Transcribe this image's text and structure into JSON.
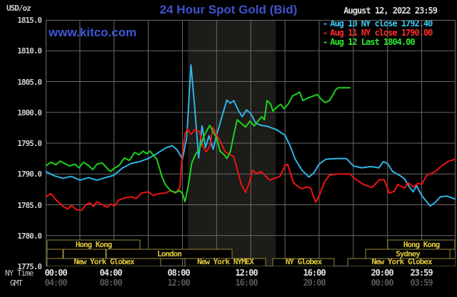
{
  "header": {
    "unit": "USD/oz",
    "title": "24 Hour Spot Gold (Bid)",
    "site": "www.kitco.com",
    "datetime": "August 12, 2022 23:59"
  },
  "legend": {
    "items": [
      {
        "label": "Aug 10 NY close 1792.40",
        "color": "#3cc8f5"
      },
      {
        "label": "Aug 11 NY close 1790.00",
        "color": "#ff2a2a"
      },
      {
        "label": "Aug 12 Last 1804.00",
        "color": "#2ee62e"
      }
    ]
  },
  "axes": {
    "ny_time_label": "NY Time",
    "gmt_label": "GMT",
    "y_labels": [
      "1815.0",
      "1810.0",
      "1805.0",
      "1800.0",
      "1795.0",
      "1790.0",
      "1785.0",
      "1780.0",
      "1775.0"
    ],
    "x_ny": [
      "00:00",
      "04:00",
      "08:00",
      "12:00",
      "16:00",
      "20:00",
      "23:59"
    ],
    "x_gmt": [
      "04:00",
      "08:00",
      "12:00",
      "16:00",
      "20:00",
      "00:00",
      "03:59"
    ]
  },
  "sessions": {
    "border_color": "#97893b",
    "text_color": "#dcc63c",
    "rows": [
      {
        "boxes": [
          {
            "x1": 66,
            "x2": 196,
            "label": "Hong Kong"
          },
          {
            "x1": 543,
            "x2": 637,
            "label": "Hong Kong"
          }
        ]
      },
      {
        "boxes": [
          {
            "x1": 66,
            "x2": 88,
            "label": ""
          },
          {
            "x1": 89,
            "x2": 148,
            "label": ""
          },
          {
            "x1": 149,
            "x2": 325,
            "label": "London"
          },
          {
            "x1": 512,
            "x2": 630,
            "label": "Sydney"
          }
        ]
      },
      {
        "boxes": [
          {
            "x1": 66,
            "x2": 225,
            "label": "New York Globex"
          },
          {
            "x1": 259,
            "x2": 372,
            "label": "New York NYMEX"
          },
          {
            "x1": 382,
            "x2": 468,
            "label": "NY Globex"
          },
          {
            "x1": 487,
            "x2": 638,
            "label": "New York Globex"
          }
        ]
      }
    ]
  },
  "chart_data": {
    "type": "line",
    "title": "24 Hour Spot Gold (Bid)",
    "xlabel": "NY Time (hours 00:00 - 23:59)",
    "ylabel": "USD/oz",
    "ylim": [
      1775,
      1815
    ],
    "xlim_hours": [
      0,
      23.9833
    ],
    "grid": {
      "y_step": 5,
      "x_step_hours": 2,
      "color": "#6a6a6a"
    },
    "nymex_band_hours": [
      8.33,
      13.45
    ],
    "nymex_band_color": "#1c1c18",
    "background": "#000000",
    "series": [
      {
        "name": "Aug 10 (close 1792.40)",
        "color": "#2fb4e6",
        "points": [
          [
            0,
            1790.4
          ],
          [
            0.5,
            1789.7
          ],
          [
            1,
            1789.3
          ],
          [
            1.5,
            1789.6
          ],
          [
            2,
            1789.0
          ],
          [
            2.5,
            1789.4
          ],
          [
            3,
            1789.0
          ],
          [
            3.5,
            1789.4
          ],
          [
            4,
            1789.8
          ],
          [
            4.5,
            1791.0
          ],
          [
            5,
            1791.7
          ],
          [
            5.5,
            1792.0
          ],
          [
            6,
            1792.5
          ],
          [
            6.5,
            1793.3
          ],
          [
            7,
            1794.2
          ],
          [
            7.4,
            1794.6
          ],
          [
            7.7,
            1793.9
          ],
          [
            8.0,
            1792.4
          ],
          [
            8.25,
            1795.8
          ],
          [
            8.5,
            1807.7
          ],
          [
            8.7,
            1801.5
          ],
          [
            8.95,
            1792.6
          ],
          [
            9.15,
            1797.8
          ],
          [
            9.35,
            1794.3
          ],
          [
            9.55,
            1796.2
          ],
          [
            9.8,
            1794.0
          ],
          [
            10.0,
            1796.3
          ],
          [
            10.3,
            1799.2
          ],
          [
            10.6,
            1802.0
          ],
          [
            10.8,
            1801.5
          ],
          [
            11.0,
            1801.9
          ],
          [
            11.3,
            1800.2
          ],
          [
            11.5,
            1799.3
          ],
          [
            11.75,
            1800.4
          ],
          [
            12.0,
            1799.8
          ],
          [
            12.3,
            1798.2
          ],
          [
            12.6,
            1797.9
          ],
          [
            13.0,
            1797.7
          ],
          [
            13.5,
            1797.2
          ],
          [
            14.0,
            1796.3
          ],
          [
            14.3,
            1794.6
          ],
          [
            14.6,
            1792.4
          ],
          [
            15.0,
            1790.6
          ],
          [
            15.4,
            1789.5
          ],
          [
            15.7,
            1790.2
          ],
          [
            16.0,
            1791.6
          ],
          [
            16.4,
            1792.4
          ],
          [
            17.0,
            1792.5
          ],
          [
            17.6,
            1792.5
          ],
          [
            18.0,
            1791.3
          ],
          [
            18.5,
            1791.0
          ],
          [
            19.0,
            1791.2
          ],
          [
            19.5,
            1791.0
          ],
          [
            19.75,
            1792.0
          ],
          [
            20.0,
            1791.7
          ],
          [
            20.3,
            1790.4
          ],
          [
            20.7,
            1789.8
          ],
          [
            21.0,
            1789.2
          ],
          [
            21.3,
            1787.8
          ],
          [
            21.5,
            1787.1
          ],
          [
            21.7,
            1788.1
          ],
          [
            22.0,
            1786.5
          ],
          [
            22.5,
            1784.8
          ],
          [
            22.8,
            1785.4
          ],
          [
            23.1,
            1786.3
          ],
          [
            23.5,
            1786.4
          ],
          [
            23.98,
            1785.9
          ]
        ]
      },
      {
        "name": "Aug 11 (close 1790.00)",
        "color": "#ee1212",
        "points": [
          [
            0,
            1786.3
          ],
          [
            0.3,
            1786.8
          ],
          [
            0.6,
            1785.8
          ],
          [
            1.0,
            1784.8
          ],
          [
            1.3,
            1784.3
          ],
          [
            1.5,
            1784.9
          ],
          [
            1.8,
            1784.2
          ],
          [
            2.1,
            1784.1
          ],
          [
            2.4,
            1785.1
          ],
          [
            2.6,
            1785.3
          ],
          [
            2.8,
            1784.7
          ],
          [
            3.0,
            1785.5
          ],
          [
            3.3,
            1785.0
          ],
          [
            3.6,
            1784.6
          ],
          [
            3.8,
            1785.1
          ],
          [
            4.0,
            1784.8
          ],
          [
            4.3,
            1785.8
          ],
          [
            4.6,
            1786.1
          ],
          [
            5.0,
            1786.3
          ],
          [
            5.3,
            1786.0
          ],
          [
            5.6,
            1786.9
          ],
          [
            6.0,
            1787.1
          ],
          [
            6.3,
            1786.5
          ],
          [
            6.6,
            1786.8
          ],
          [
            7.0,
            1786.9
          ],
          [
            7.3,
            1787.3
          ],
          [
            7.6,
            1786.9
          ],
          [
            7.85,
            1787.8
          ],
          [
            8.0,
            1793.5
          ],
          [
            8.15,
            1796.5
          ],
          [
            8.3,
            1797.3
          ],
          [
            8.5,
            1796.4
          ],
          [
            8.7,
            1797.2
          ],
          [
            9.0,
            1796.9
          ],
          [
            9.2,
            1794.4
          ],
          [
            9.4,
            1793.6
          ],
          [
            9.6,
            1794.5
          ],
          [
            9.8,
            1797.6
          ],
          [
            10.0,
            1796.3
          ],
          [
            10.2,
            1795.4
          ],
          [
            10.5,
            1793.6
          ],
          [
            10.8,
            1793.1
          ],
          [
            11.0,
            1792.8
          ],
          [
            11.2,
            1790.8
          ],
          [
            11.45,
            1788.3
          ],
          [
            11.7,
            1787.0
          ],
          [
            11.9,
            1788.5
          ],
          [
            12.1,
            1790.6
          ],
          [
            12.35,
            1790.1
          ],
          [
            12.6,
            1790.4
          ],
          [
            12.85,
            1789.7
          ],
          [
            13.1,
            1789.0
          ],
          [
            13.4,
            1789.3
          ],
          [
            13.7,
            1789.6
          ],
          [
            14.0,
            1791.3
          ],
          [
            14.15,
            1791.6
          ],
          [
            14.5,
            1788.6
          ],
          [
            14.8,
            1787.9
          ],
          [
            15.0,
            1787.6
          ],
          [
            15.3,
            1787.9
          ],
          [
            15.5,
            1787.7
          ],
          [
            15.8,
            1785.4
          ],
          [
            16.0,
            1786.4
          ],
          [
            16.3,
            1788.6
          ],
          [
            16.6,
            1789.8
          ],
          [
            17.0,
            1790.0
          ],
          [
            17.8,
            1790.0
          ],
          [
            18.1,
            1789.2
          ],
          [
            18.6,
            1788.3
          ],
          [
            19.1,
            1787.8
          ],
          [
            19.5,
            1789.0
          ],
          [
            19.8,
            1789.1
          ],
          [
            20.1,
            1786.9
          ],
          [
            20.4,
            1787.2
          ],
          [
            20.6,
            1788.3
          ],
          [
            21.0,
            1787.7
          ],
          [
            21.2,
            1788.6
          ],
          [
            21.5,
            1787.9
          ],
          [
            21.8,
            1788.5
          ],
          [
            22.0,
            1788.3
          ],
          [
            22.3,
            1789.8
          ],
          [
            22.8,
            1790.4
          ],
          [
            23.2,
            1791.4
          ],
          [
            23.6,
            1792.1
          ],
          [
            23.98,
            1792.4
          ]
        ]
      },
      {
        "name": "Aug 12 (last 1804.00)",
        "color": "#1ed11e",
        "points": [
          [
            0,
            1791.3
          ],
          [
            0.3,
            1791.9
          ],
          [
            0.6,
            1791.5
          ],
          [
            0.85,
            1792.1
          ],
          [
            1.1,
            1791.7
          ],
          [
            1.4,
            1791.3
          ],
          [
            1.7,
            1791.6
          ],
          [
            1.95,
            1791.0
          ],
          [
            2.2,
            1791.9
          ],
          [
            2.5,
            1791.4
          ],
          [
            2.75,
            1790.7
          ],
          [
            3.0,
            1791.6
          ],
          [
            3.3,
            1791.8
          ],
          [
            3.6,
            1790.9
          ],
          [
            3.8,
            1790.4
          ],
          [
            4.0,
            1790.9
          ],
          [
            4.3,
            1791.4
          ],
          [
            4.6,
            1792.6
          ],
          [
            4.9,
            1792.2
          ],
          [
            5.2,
            1793.5
          ],
          [
            5.45,
            1793.1
          ],
          [
            5.7,
            1793.7
          ],
          [
            5.9,
            1793.3
          ],
          [
            6.1,
            1793.7
          ],
          [
            6.5,
            1792.4
          ],
          [
            6.8,
            1789.6
          ],
          [
            7.0,
            1788.3
          ],
          [
            7.3,
            1787.3
          ],
          [
            7.6,
            1787.0
          ],
          [
            7.85,
            1787.3
          ],
          [
            8.0,
            1786.8
          ],
          [
            8.15,
            1785.5
          ],
          [
            8.35,
            1788.2
          ],
          [
            8.55,
            1791.8
          ],
          [
            8.75,
            1793.1
          ],
          [
            9.0,
            1794.1
          ],
          [
            9.3,
            1796.4
          ],
          [
            9.6,
            1797.9
          ],
          [
            9.8,
            1796.8
          ],
          [
            10.0,
            1795.9
          ],
          [
            10.2,
            1793.7
          ],
          [
            10.45,
            1793.1
          ],
          [
            10.6,
            1792.5
          ],
          [
            10.8,
            1793.6
          ],
          [
            11.0,
            1796.3
          ],
          [
            11.2,
            1798.8
          ],
          [
            11.5,
            1798.1
          ],
          [
            11.7,
            1797.6
          ],
          [
            11.95,
            1798.6
          ],
          [
            12.2,
            1797.8
          ],
          [
            12.45,
            1798.7
          ],
          [
            12.65,
            1799.3
          ],
          [
            12.8,
            1798.8
          ],
          [
            12.95,
            1801.9
          ],
          [
            13.15,
            1801.4
          ],
          [
            13.3,
            1800.2
          ],
          [
            13.55,
            1800.9
          ],
          [
            13.75,
            1801.3
          ],
          [
            13.95,
            1800.6
          ],
          [
            14.2,
            1801.4
          ],
          [
            14.45,
            1802.7
          ],
          [
            14.7,
            1803.0
          ],
          [
            14.85,
            1803.3
          ],
          [
            15.05,
            1801.9
          ],
          [
            15.3,
            1802.3
          ],
          [
            15.6,
            1802.6
          ],
          [
            15.9,
            1802.9
          ],
          [
            16.1,
            1802.2
          ],
          [
            16.35,
            1801.6
          ],
          [
            16.6,
            1801.9
          ],
          [
            16.8,
            1802.8
          ],
          [
            16.95,
            1803.6
          ],
          [
            17.1,
            1804.0
          ],
          [
            17.8,
            1804.0
          ]
        ]
      }
    ]
  }
}
